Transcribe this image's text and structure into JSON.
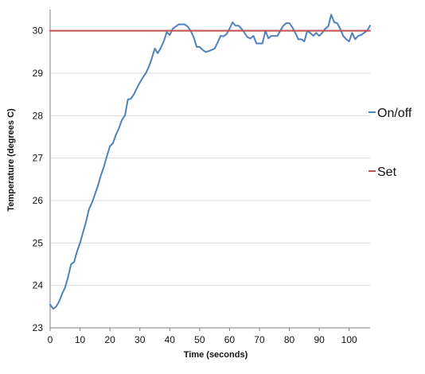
{
  "chart_data": {
    "type": "line",
    "title": "",
    "xlabel": "Time (seconds)",
    "ylabel": "Temperature (degrees C)",
    "xlim": [
      0,
      107
    ],
    "ylim": [
      23,
      30.5
    ],
    "xticks": [
      "0",
      "10",
      "20",
      "30",
      "40",
      "50",
      "60",
      "70",
      "80",
      "90",
      "100"
    ],
    "yticks": [
      "23",
      "24",
      "25",
      "26",
      "27",
      "28",
      "29",
      "30"
    ],
    "grid": "horizontal",
    "legend_position": "right",
    "series": [
      {
        "name": "On/off",
        "color": "#4f81bd",
        "points": [
          [
            0,
            23.55
          ],
          [
            1,
            23.45
          ],
          [
            2,
            23.5
          ],
          [
            3,
            23.62
          ],
          [
            4,
            23.8
          ],
          [
            5,
            23.95
          ],
          [
            6,
            24.2
          ],
          [
            7,
            24.5
          ],
          [
            8,
            24.55
          ],
          [
            9,
            24.8
          ],
          [
            10,
            25.0
          ],
          [
            11,
            25.25
          ],
          [
            12,
            25.5
          ],
          [
            13,
            25.8
          ],
          [
            14,
            25.95
          ],
          [
            15,
            26.15
          ],
          [
            16,
            26.35
          ],
          [
            17,
            26.6
          ],
          [
            18,
            26.8
          ],
          [
            19,
            27.05
          ],
          [
            20,
            27.28
          ],
          [
            21,
            27.35
          ],
          [
            22,
            27.55
          ],
          [
            23,
            27.7
          ],
          [
            24,
            27.9
          ],
          [
            25,
            28.0
          ],
          [
            26,
            28.38
          ],
          [
            27,
            28.4
          ],
          [
            28,
            28.5
          ],
          [
            29,
            28.65
          ],
          [
            30,
            28.78
          ],
          [
            31,
            28.9
          ],
          [
            32,
            29.0
          ],
          [
            33,
            29.15
          ],
          [
            34,
            29.35
          ],
          [
            35,
            29.58
          ],
          [
            36,
            29.47
          ],
          [
            37,
            29.6
          ],
          [
            38,
            29.75
          ],
          [
            39,
            29.97
          ],
          [
            40,
            29.9
          ],
          [
            41,
            30.05
          ],
          [
            42,
            30.1
          ],
          [
            43,
            30.15
          ],
          [
            44,
            30.15
          ],
          [
            45,
            30.15
          ],
          [
            46,
            30.1
          ],
          [
            47,
            30.0
          ],
          [
            48,
            29.85
          ],
          [
            49,
            29.62
          ],
          [
            50,
            29.62
          ],
          [
            51,
            29.55
          ],
          [
            52,
            29.5
          ],
          [
            53,
            29.52
          ],
          [
            54,
            29.55
          ],
          [
            55,
            29.58
          ],
          [
            56,
            29.72
          ],
          [
            57,
            29.88
          ],
          [
            58,
            29.87
          ],
          [
            59,
            29.92
          ],
          [
            60,
            30.05
          ],
          [
            61,
            30.2
          ],
          [
            62,
            30.12
          ],
          [
            63,
            30.12
          ],
          [
            64,
            30.05
          ],
          [
            65,
            29.95
          ],
          [
            66,
            29.85
          ],
          [
            67,
            29.82
          ],
          [
            68,
            29.88
          ],
          [
            69,
            29.7
          ],
          [
            70,
            29.7
          ],
          [
            71,
            29.7
          ],
          [
            72,
            30.0
          ],
          [
            73,
            29.82
          ],
          [
            74,
            29.88
          ],
          [
            75,
            29.88
          ],
          [
            76,
            29.88
          ],
          [
            77,
            30.0
          ],
          [
            78,
            30.12
          ],
          [
            79,
            30.18
          ],
          [
            80,
            30.18
          ],
          [
            81,
            30.08
          ],
          [
            82,
            29.95
          ],
          [
            83,
            29.8
          ],
          [
            84,
            29.8
          ],
          [
            85,
            29.75
          ],
          [
            86,
            30.0
          ],
          [
            87,
            29.95
          ],
          [
            88,
            29.88
          ],
          [
            89,
            29.95
          ],
          [
            90,
            29.88
          ],
          [
            91,
            29.95
          ],
          [
            92,
            30.05
          ],
          [
            93,
            30.1
          ],
          [
            94,
            30.38
          ],
          [
            95,
            30.2
          ],
          [
            96,
            30.18
          ],
          [
            97,
            30.05
          ],
          [
            98,
            29.88
          ],
          [
            99,
            29.8
          ],
          [
            100,
            29.75
          ],
          [
            101,
            29.95
          ],
          [
            102,
            29.8
          ],
          [
            103,
            29.88
          ],
          [
            104,
            29.9
          ],
          [
            105,
            29.95
          ],
          [
            106,
            30.0
          ],
          [
            107,
            30.12
          ]
        ]
      },
      {
        "name": "Set",
        "color": "#c0504d",
        "points": [
          [
            0,
            30
          ],
          [
            107,
            30
          ]
        ]
      }
    ]
  }
}
